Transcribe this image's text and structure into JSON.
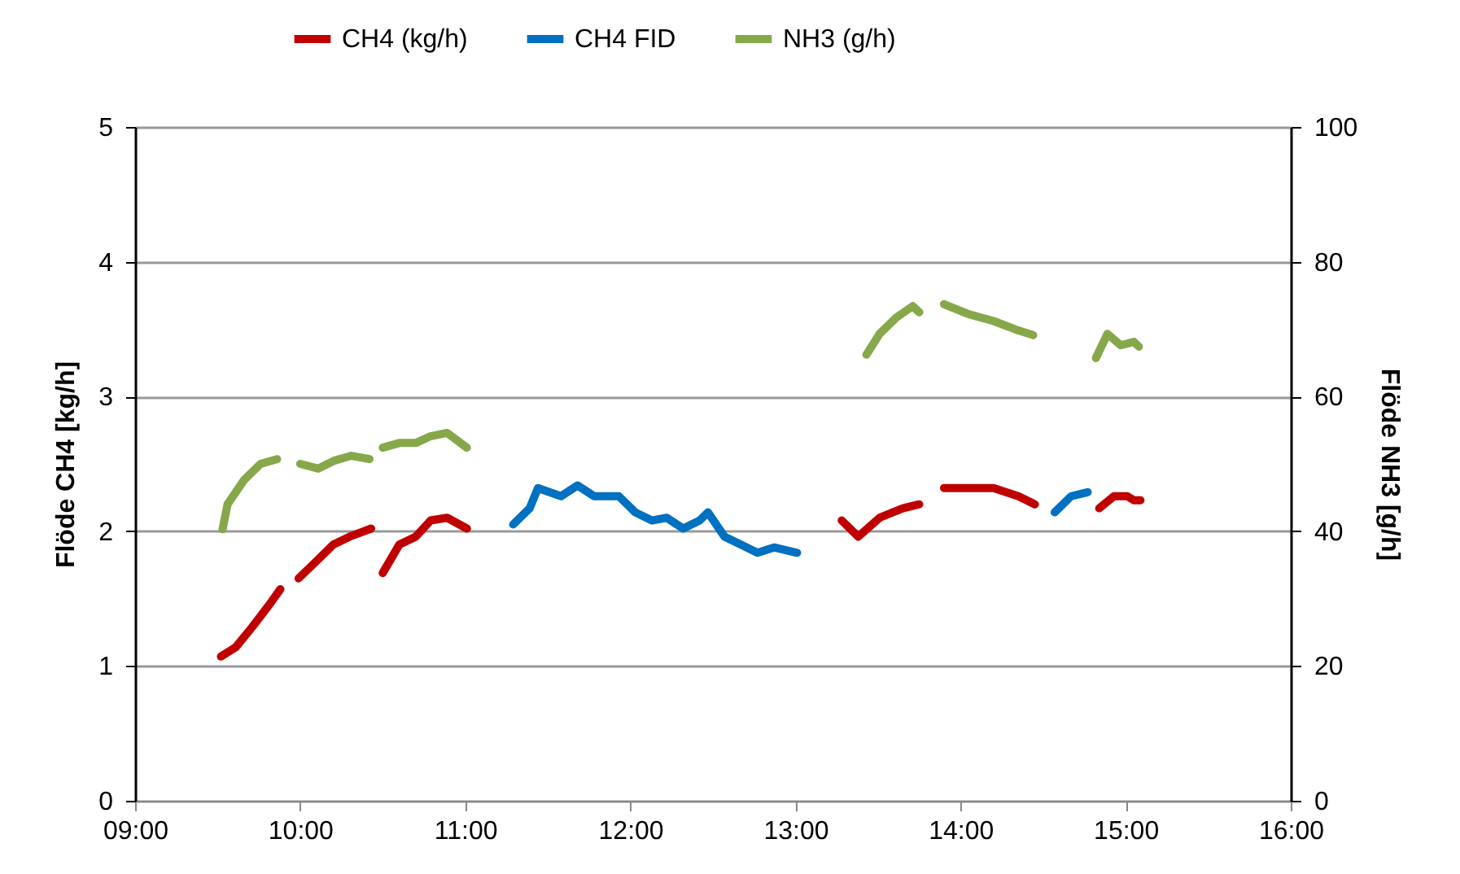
{
  "chart_data": {
    "type": "line",
    "ylabel": "Flöde CH4 [kg/h]",
    "y2label": "Flöde NH3 [g/h]",
    "xlim": [
      9,
      16
    ],
    "xticks": [
      {
        "value": 9,
        "label": "09:00"
      },
      {
        "value": 10,
        "label": "10:00"
      },
      {
        "value": 11,
        "label": "11:00"
      },
      {
        "value": 12,
        "label": "12:00"
      },
      {
        "value": 13,
        "label": "13:00"
      },
      {
        "value": 14,
        "label": "14:00"
      },
      {
        "value": 15,
        "label": "15:00"
      },
      {
        "value": 16,
        "label": "16:00"
      }
    ],
    "ylim": [
      0,
      5
    ],
    "yticks": [
      0,
      1,
      2,
      3,
      4,
      5
    ],
    "y2lim": [
      0,
      100
    ],
    "y2ticks": [
      0,
      20,
      40,
      60,
      80,
      100
    ],
    "grid": "y",
    "legend": "top",
    "line_style": "solid",
    "marker": "none",
    "series": [
      {
        "name": "CH4 (kg/h)",
        "color": "#c00000",
        "x": [
          9.52,
          9.61,
          9.71,
          9.81,
          9.88,
          9.94,
          9.99,
          10.1,
          10.2,
          10.3,
          10.43,
          10.47,
          10.5,
          10.6,
          10.7,
          10.79,
          10.89,
          11.01,
          12.1,
          13.28,
          13.38,
          13.51,
          13.65,
          13.75,
          13.83,
          13.9,
          14.05,
          14.2,
          14.35,
          14.45,
          14.6,
          14.84,
          14.93,
          15.01,
          15.05,
          15.09
        ],
        "values": [
          1.07,
          1.14,
          1.29,
          1.45,
          1.57,
          null,
          1.65,
          1.78,
          1.9,
          1.96,
          2.02,
          null,
          1.69,
          1.9,
          1.96,
          2.08,
          2.1,
          2.02,
          null,
          2.08,
          1.96,
          2.1,
          2.17,
          2.2,
          null,
          2.32,
          2.32,
          2.32,
          2.26,
          2.2,
          null,
          2.17,
          2.26,
          2.26,
          2.23,
          2.23
        ]
      },
      {
        "name": "CH4 FID",
        "color": "#0070c0",
        "x": [
          11.29,
          11.39,
          11.44,
          11.58,
          11.68,
          11.78,
          11.93,
          12.03,
          12.13,
          12.22,
          12.32,
          12.42,
          12.47,
          12.57,
          12.67,
          12.77,
          12.87,
          13.01,
          13.8,
          14.57,
          14.67,
          14.77
        ],
        "values": [
          2.05,
          2.17,
          2.32,
          2.26,
          2.34,
          2.26,
          2.26,
          2.14,
          2.08,
          2.1,
          2.02,
          2.08,
          2.14,
          1.96,
          1.9,
          1.84,
          1.88,
          1.84,
          null,
          2.14,
          2.26,
          2.29
        ]
      },
      {
        "name": "NH3 (g/h)",
        "color": "#86a84a",
        "axis": "y2",
        "x": [
          9.53,
          9.56,
          9.66,
          9.76,
          9.86,
          9.93,
          10.0,
          10.11,
          10.21,
          10.31,
          10.42,
          10.46,
          10.5,
          10.6,
          10.7,
          10.79,
          10.89,
          11.01,
          12.2,
          13.43,
          13.51,
          13.61,
          13.71,
          13.75,
          13.83,
          13.9,
          14.05,
          14.2,
          14.35,
          14.44,
          14.6,
          14.82,
          14.89,
          14.97,
          15.05,
          15.08
        ],
        "values": [
          40.3,
          44.0,
          47.6,
          50.0,
          50.7,
          null,
          50.0,
          49.3,
          50.5,
          51.2,
          50.7,
          null,
          52.4,
          53.1,
          53.1,
          54.1,
          54.6,
          52.4,
          null,
          66.2,
          69.3,
          71.7,
          73.4,
          72.5,
          null,
          73.7,
          72.2,
          71.2,
          69.8,
          69.1,
          null,
          65.7,
          69.3,
          67.6,
          68.1,
          67.4
        ]
      }
    ]
  }
}
